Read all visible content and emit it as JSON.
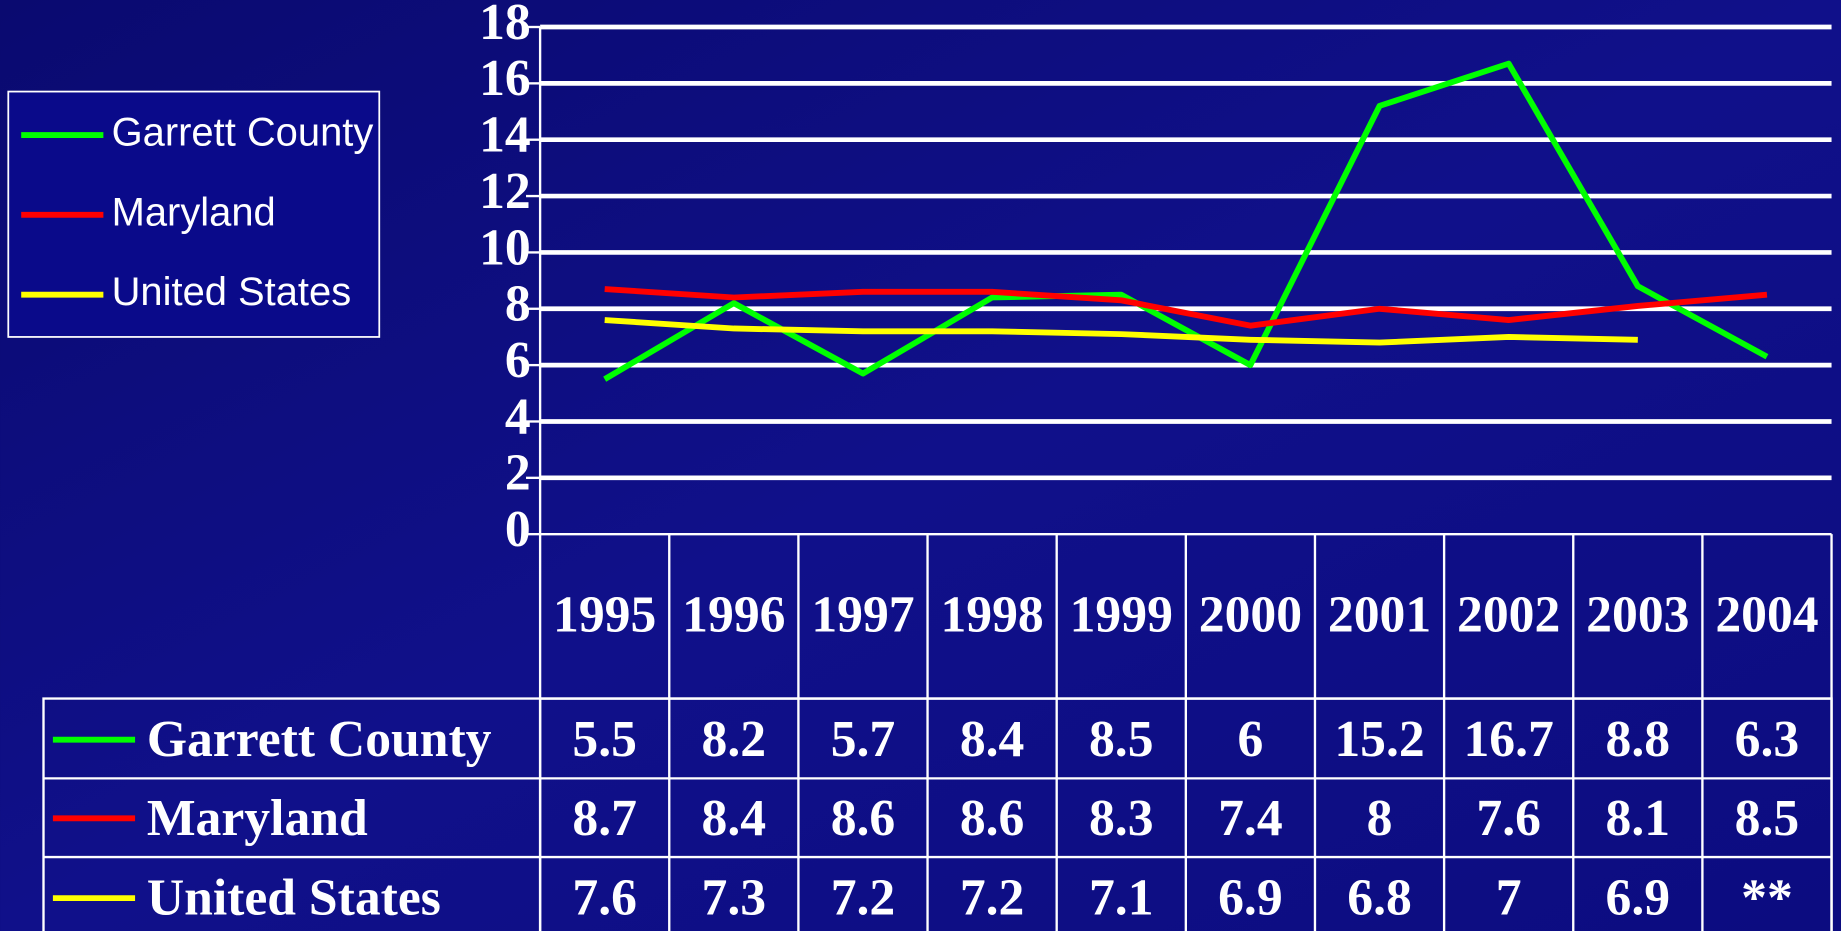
{
  "chart_data": {
    "type": "line",
    "categories": [
      "1995",
      "1996",
      "1997",
      "1998",
      "1999",
      "2000",
      "2001",
      "2002",
      "2003",
      "2004"
    ],
    "series": [
      {
        "name": "Garrett County",
        "color": "#00ff00",
        "values": [
          5.5,
          8.2,
          5.7,
          8.4,
          8.5,
          6,
          15.2,
          16.7,
          8.8,
          6.3
        ]
      },
      {
        "name": "Maryland",
        "color": "#ff0000",
        "values": [
          8.7,
          8.4,
          8.6,
          8.6,
          8.3,
          7.4,
          8,
          7.6,
          8.1,
          8.5
        ]
      },
      {
        "name": "United States",
        "color": "#ffff00",
        "values": [
          7.6,
          7.3,
          7.2,
          7.2,
          7.1,
          6.9,
          6.8,
          7,
          6.9,
          null
        ],
        "value_labels": [
          "7.6",
          "7.3",
          "7.2",
          "7.2",
          "7.1",
          "6.9",
          "6.8",
          "7",
          "6.9",
          "**"
        ]
      }
    ],
    "ylim": [
      0,
      18
    ],
    "yticks": [
      0,
      2,
      4,
      6,
      8,
      10,
      12,
      14,
      16,
      18
    ],
    "grid": true,
    "legend": "left"
  }
}
